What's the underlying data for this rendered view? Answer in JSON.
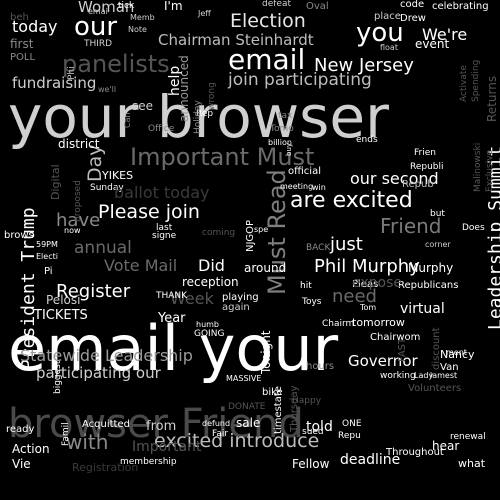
{
  "word_cloud": {
    "words": [
      {
        "text": "your browser",
        "color": "#cfcfcf"
      },
      {
        "text": "email your",
        "color": "#ffffff"
      },
      {
        "text": "browser Friend",
        "color": "#4a4a4a"
      },
      {
        "text": "Important Must",
        "color": "#6a6a6a"
      },
      {
        "text": "Must Read",
        "color": "#7f7f7f"
      },
      {
        "text": "email",
        "color": "#ffffff"
      },
      {
        "text": "panelists",
        "color": "#555555"
      },
      {
        "text": "Election",
        "color": "#e6e6e6"
      },
      {
        "text": "Chairman Steinhardt",
        "color": "#bdbdbd"
      },
      {
        "text": "New Jersey",
        "color": "#ffffff"
      },
      {
        "text": "join participating",
        "color": "#bdbdbd"
      },
      {
        "text": "our",
        "color": "#ffffff"
      },
      {
        "text": "you",
        "color": "#ffffff"
      },
      {
        "text": "Woman",
        "color": "#cfcfcf"
      },
      {
        "text": "today",
        "color": "#ffffff"
      },
      {
        "text": "fundraising",
        "color": "#cfcfcf"
      },
      {
        "text": "Please join",
        "color": "#ffffff"
      },
      {
        "text": "are excited",
        "color": "#ffffff"
      },
      {
        "text": "our second",
        "color": "#ffffff"
      },
      {
        "text": "Friend",
        "color": "#7a7a7a"
      },
      {
        "text": "Leadership Summit",
        "color": "#ffffff"
      },
      {
        "text": "Day",
        "color": "#bdbdbd"
      },
      {
        "text": "President Trump",
        "color": "#ffffff"
      },
      {
        "text": "have",
        "color": "#8a8a8a"
      },
      {
        "text": "annual",
        "color": "#6a6a6a"
      },
      {
        "text": "Vote Mail",
        "color": "#6a6a6a"
      },
      {
        "text": "Did",
        "color": "#ffffff"
      },
      {
        "text": "just",
        "color": "#ffffff"
      },
      {
        "text": "Phil Murphy",
        "color": "#ffffff"
      },
      {
        "text": "Murphy",
        "color": "#ffffff"
      },
      {
        "text": "Register",
        "color": "#ffffff"
      },
      {
        "text": "need",
        "color": "#6a6a6a"
      },
      {
        "text": "virtual",
        "color": "#ffffff"
      },
      {
        "text": "TICKETS",
        "color": "#ffffff"
      },
      {
        "text": "Year",
        "color": "#ffffff"
      },
      {
        "text": "Statewide Leadership",
        "color": "#9a9a9a"
      },
      {
        "text": "participating our",
        "color": "#cfcfcf"
      },
      {
        "text": "Governor",
        "color": "#ffffff"
      },
      {
        "text": "with",
        "color": "#8a8a8a"
      },
      {
        "text": "excited introduce",
        "color": "#bdbdbd"
      },
      {
        "text": "from",
        "color": "#cfcfcf"
      },
      {
        "text": "told",
        "color": "#ffffff"
      },
      {
        "text": "deadline",
        "color": "#ffffff"
      },
      {
        "text": "Nancy",
        "color": "#ffffff"
      },
      {
        "text": "Fellow",
        "color": "#ffffff"
      },
      {
        "text": "Important",
        "color": "#555555"
      },
      {
        "text": "Pelosi",
        "color": "#cfcfcf"
      },
      {
        "text": "Tonight",
        "color": "#ffffff"
      },
      {
        "text": "announced",
        "color": "#9a9a9a"
      },
      {
        "text": "help",
        "color": "#ffffff"
      },
      {
        "text": "see",
        "color": "#cfcfcf"
      },
      {
        "text": "district",
        "color": "#ffffff"
      },
      {
        "text": "YIKES",
        "color": "#ffffff"
      },
      {
        "text": "official",
        "color": "#ffffff"
      },
      {
        "text": "around",
        "color": "#ffffff"
      },
      {
        "text": "reception",
        "color": "#ffffff"
      },
      {
        "text": "Republicans",
        "color": "#ffffff"
      },
      {
        "text": "Action",
        "color": "#ffffff"
      },
      {
        "text": "Vie",
        "color": "#ffffff"
      },
      {
        "text": "ready",
        "color": "#ffffff"
      },
      {
        "text": "sale",
        "color": "#ffffff"
      },
      {
        "text": "Throughout",
        "color": "#ffffff"
      },
      {
        "text": "hear",
        "color": "#ffffff"
      },
      {
        "text": "what",
        "color": "#ffffff"
      },
      {
        "text": "tomorrow",
        "color": "#ffffff"
      },
      {
        "text": "Acquitted",
        "color": "#ffffff"
      },
      {
        "text": "celebrating",
        "color": "#ffffff"
      },
      {
        "text": "event",
        "color": "#ffffff"
      },
      {
        "text": "I'm",
        "color": "#ffffff"
      },
      {
        "text": "code",
        "color": "#ffffff"
      },
      {
        "text": "Drew",
        "color": "#ffffff"
      },
      {
        "text": "first",
        "color": "#8a8a8a"
      },
      {
        "text": "THIRD",
        "color": "#cfcfcf"
      },
      {
        "text": "Note",
        "color": "#cfcfcf"
      },
      {
        "text": "Oval",
        "color": "#8a8a8a"
      },
      {
        "text": "Sunday",
        "color": "#ffffff"
      },
      {
        "text": "Memb",
        "color": "#cfcfcf"
      },
      {
        "text": "Jeff",
        "color": "#cfcfcf"
      },
      {
        "text": "float",
        "color": "#cfcfcf"
      },
      {
        "text": "Repub",
        "color": "#bdbdbd"
      },
      {
        "text": "NJGOP",
        "color": "#ffffff"
      },
      {
        "text": "playing",
        "color": "#ffffff"
      },
      {
        "text": "again",
        "color": "#cfcfcf"
      },
      {
        "text": "Chairm",
        "color": "#ffffff"
      },
      {
        "text": "corner",
        "color": "#cfcfcf"
      },
      {
        "text": "working",
        "color": "#ffffff"
      },
      {
        "text": "lamest",
        "color": "#ffffff"
      },
      {
        "text": "Van",
        "color": "#ffffff"
      },
      {
        "text": "membership",
        "color": "#ffffff"
      },
      {
        "text": "brows",
        "color": "#ffffff"
      },
      {
        "text": "now",
        "color": "#ffffff"
      },
      {
        "text": "tick",
        "color": "#ffffff"
      },
      {
        "text": "billion",
        "color": "#ffffff"
      },
      {
        "text": "Pleas",
        "color": "#ffffff"
      },
      {
        "text": "Toys",
        "color": "#ffffff"
      },
      {
        "text": "Lady",
        "color": "#ffffff"
      },
      {
        "text": "MASSIVE",
        "color": "#ffffff"
      },
      {
        "text": "defeat",
        "color": "#cfcfcf"
      },
      {
        "text": "emai",
        "color": "#cfcfcf"
      },
      {
        "text": "win",
        "color": "#ffffff"
      },
      {
        "text": "BACK",
        "color": "#8a8a8a"
      },
      {
        "text": "Tom",
        "color": "#ffffff"
      },
      {
        "text": "Frien",
        "color": "#ffffff"
      },
      {
        "text": "Does",
        "color": "#ffffff"
      },
      {
        "text": "ends",
        "color": "#ffffff"
      },
      {
        "text": "meeting",
        "color": "#ffffff"
      },
      {
        "text": "buy",
        "color": "#ffffff"
      },
      {
        "text": "humb",
        "color": "#ffffff"
      },
      {
        "text": "ment",
        "color": "#ffffff"
      },
      {
        "text": "ONE",
        "color": "#ffffff"
      },
      {
        "text": "sued",
        "color": "#ffffff"
      },
      {
        "text": "Fair",
        "color": "#ffffff"
      },
      {
        "text": "defund",
        "color": "#ffffff"
      },
      {
        "text": "renewal",
        "color": "#ffffff"
      },
      {
        "text": "last",
        "color": "#ffffff"
      },
      {
        "text": "signe",
        "color": "#ffffff"
      },
      {
        "text": "but",
        "color": "#ffffff"
      },
      {
        "text": "hit",
        "color": "#ffffff"
      },
      {
        "text": "Electi",
        "color": "#ffffff"
      },
      {
        "text": "59PM",
        "color": "#ffffff"
      },
      {
        "text": "Week",
        "color": "#555555"
      },
      {
        "text": "POLL",
        "color": "#8a8a8a"
      },
      {
        "text": "THANK",
        "color": "#ffffff"
      },
      {
        "text": "Office",
        "color": "#8a8a8a"
      },
      {
        "text": "Can",
        "color": "#8a8a8a"
      },
      {
        "text": "coming",
        "color": "#555555"
      },
      {
        "text": "Tomo",
        "color": "#8a8a8a"
      },
      {
        "text": "tax",
        "color": "#8a8a8a"
      },
      {
        "text": "Rep",
        "color": "#ffffff"
      },
      {
        "text": "Holiday",
        "color": "#8a8a8a"
      },
      {
        "text": "wrong",
        "color": "#555555"
      },
      {
        "text": "Digital",
        "color": "#555555"
      },
      {
        "text": "proposed",
        "color": "#555555"
      },
      {
        "text": "GOING",
        "color": "#ffffff"
      },
      {
        "text": "FAST",
        "color": "#555555"
      },
      {
        "text": "discount",
        "color": "#555555"
      },
      {
        "text": "Thursday",
        "color": "#555555"
      },
      {
        "text": "timestate",
        "color": "#ffffff"
      },
      {
        "text": "Activate",
        "color": "#555555"
      },
      {
        "text": "Spending",
        "color": "#555555"
      },
      {
        "text": "Volunteers",
        "color": "#555555"
      },
      {
        "text": "ballot today",
        "color": "#3a3a3a"
      },
      {
        "text": "Returns",
        "color": "#555555"
      },
      {
        "text": "Malinowski",
        "color": "#555555"
      },
      {
        "text": "Exclusive",
        "color": "#555555"
      },
      {
        "text": "Registration",
        "color": "#3a3a3a"
      },
      {
        "text": "DONATE",
        "color": "#555555"
      },
      {
        "text": "Happy",
        "color": "#555555"
      },
      {
        "text": "Repu",
        "color": "#ffffff"
      },
      {
        "text": "expose",
        "color": "#555555"
      },
      {
        "text": "Chairwom",
        "color": "#ffffff"
      },
      {
        "text": "Republi",
        "color": "#ffffff"
      },
      {
        "text": "beh",
        "color": "#555555"
      },
      {
        "text": "Phi",
        "color": "#cfcfcf"
      },
      {
        "text": "We're",
        "color": "#ffffff"
      },
      {
        "text": "place",
        "color": "#cfcfcf"
      },
      {
        "text": "bike",
        "color": "#ffffff"
      },
      {
        "text": "Famil",
        "color": "#ffffff"
      },
      {
        "text": "biggest",
        "color": "#ffffff"
      },
      {
        "text": "we'll",
        "color": "#8a8a8a"
      },
      {
        "text": "spe",
        "color": "#ffffff"
      },
      {
        "text": "hours",
        "color": "#8a8a8a"
      },
      {
        "text": "Pi",
        "color": "#ffffff"
      }
    ]
  }
}
